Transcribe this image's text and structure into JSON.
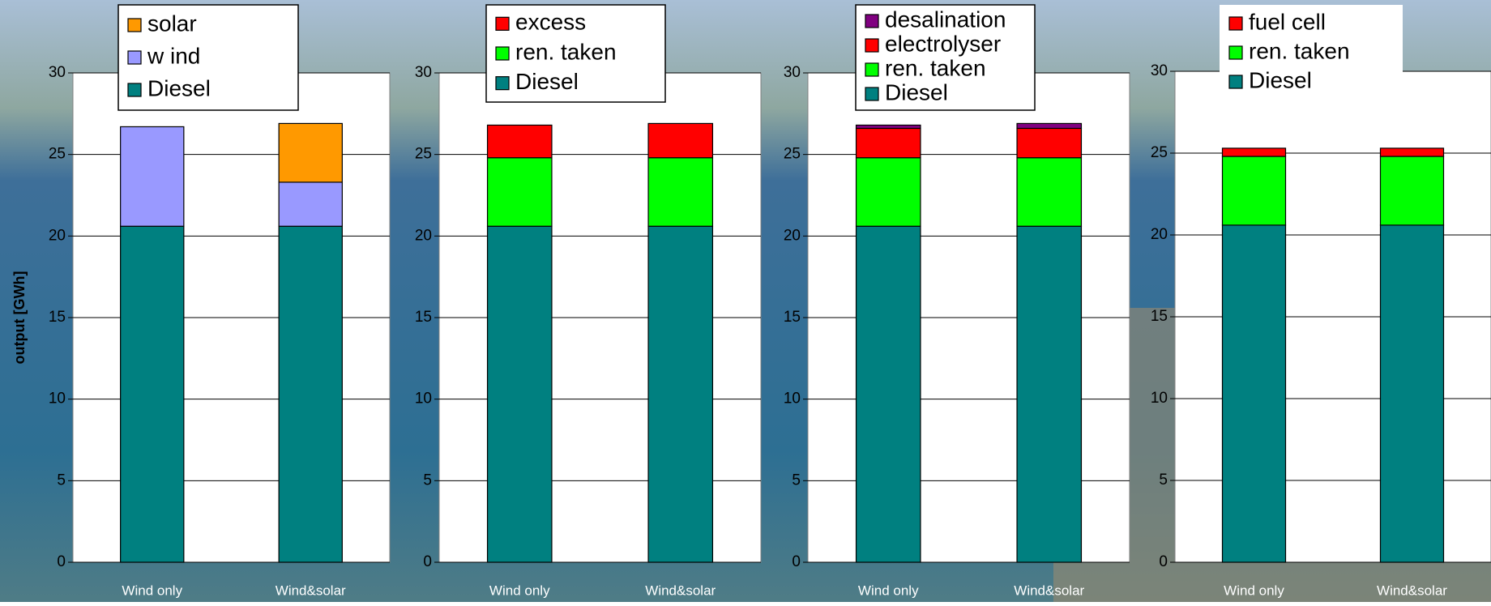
{
  "chart_data": [
    {
      "type": "bar",
      "stacked": true,
      "ylabel": "output [GWh]",
      "categories": [
        "Wind only",
        "Wind&solar"
      ],
      "series": [
        {
          "name": "Diesel",
          "color": "#008080",
          "values": [
            20.6,
            20.6
          ]
        },
        {
          "name": "w ind",
          "color": "#9999ff",
          "values": [
            6.1,
            2.7
          ]
        },
        {
          "name": "solar",
          "color": "#ff9900",
          "values": [
            null,
            3.6
          ]
        }
      ],
      "ylim": [
        0,
        30
      ],
      "yticks": [
        0,
        5,
        10,
        15,
        20,
        25,
        30
      ],
      "grid": true
    },
    {
      "type": "bar",
      "stacked": true,
      "categories": [
        "Wind only",
        "Wind&solar"
      ],
      "series": [
        {
          "name": "Diesel",
          "color": "#008080",
          "values": [
            20.6,
            20.6
          ]
        },
        {
          "name": "ren. taken",
          "color": "#00ff00",
          "values": [
            4.2,
            4.2
          ]
        },
        {
          "name": "excess",
          "color": "#ff0000",
          "values": [
            2.0,
            2.1
          ]
        }
      ],
      "ylim": [
        0,
        30
      ],
      "yticks": [
        0,
        5,
        10,
        15,
        20,
        25,
        30
      ],
      "grid": true
    },
    {
      "type": "bar",
      "stacked": true,
      "categories": [
        "Wind only",
        "Wind&solar"
      ],
      "series": [
        {
          "name": "Diesel",
          "color": "#008080",
          "values": [
            20.6,
            20.6
          ]
        },
        {
          "name": "ren. taken",
          "color": "#00ff00",
          "values": [
            4.2,
            4.2
          ]
        },
        {
          "name": "electrolyser",
          "color": "#ff0000",
          "values": [
            1.8,
            1.8
          ]
        },
        {
          "name": "desalination",
          "color": "#800080",
          "values": [
            0.2,
            0.3
          ]
        }
      ],
      "ylim": [
        0,
        30
      ],
      "yticks": [
        0,
        5,
        10,
        15,
        20,
        25,
        30
      ],
      "grid": true
    },
    {
      "type": "bar",
      "stacked": true,
      "categories": [
        "Wind only",
        "Wind&solar"
      ],
      "series": [
        {
          "name": "Diesel",
          "color": "#008080",
          "values": [
            20.6,
            20.6
          ]
        },
        {
          "name": "ren. taken",
          "color": "#00ff00",
          "values": [
            4.2,
            4.2
          ]
        },
        {
          "name": "fuel cell",
          "color": "#ff0000",
          "values": [
            0.5,
            0.5
          ]
        }
      ],
      "ylim": [
        0,
        30
      ],
      "yticks": [
        0,
        5,
        10,
        15,
        20,
        25,
        30
      ],
      "grid": true
    }
  ]
}
